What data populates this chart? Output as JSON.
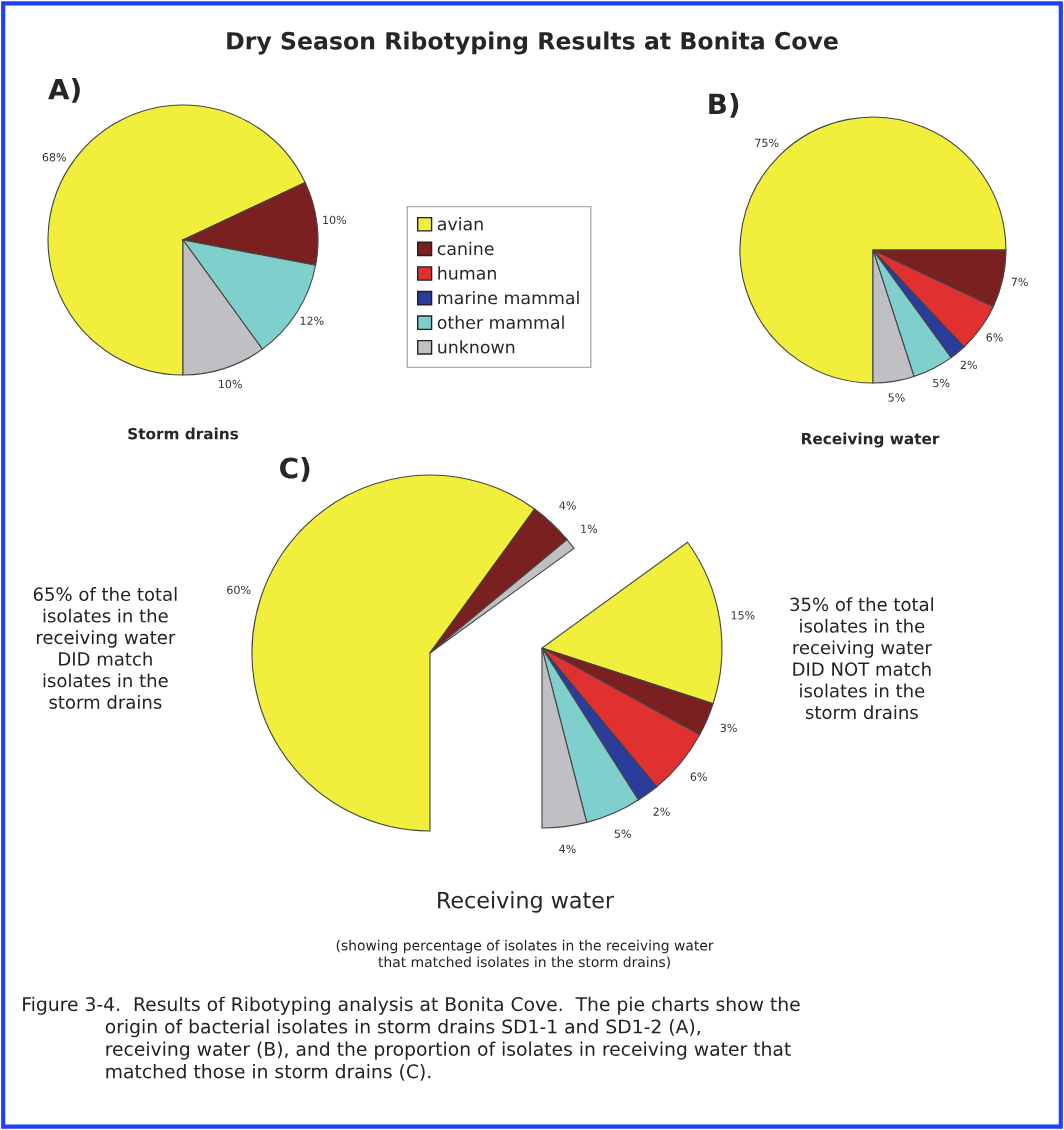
{
  "chart_data": [
    {
      "type": "pie",
      "title": "Dry Season Ribotyping Results at Bonita Cove",
      "subtitle": "A)",
      "xlabel": "Storm drains",
      "categories": [
        null,
        null,
        null,
        null
      ],
      "values": [
        68,
        10,
        12,
        10
      ],
      "value_labels": [
        "68%",
        "10%",
        "12%",
        "10%"
      ],
      "colors": [
        "#f2ee3c",
        "#7b2020",
        "#7fcfcc",
        "#c0c0c4"
      ]
    },
    {
      "type": "pie",
      "subtitle": "B)",
      "xlabel": "Receiving water",
      "legend": "left",
      "categories": [
        "avian",
        "canine",
        "human",
        "marine mammal",
        "other mammal",
        "unknown"
      ],
      "values": [
        75,
        7,
        6,
        2,
        5,
        5
      ],
      "value_labels": [
        "75%",
        "7%",
        "6%",
        "2%",
        "5%",
        "5%"
      ],
      "colors": [
        "#f2ee3c",
        "#7b2020",
        "#e03030",
        "#2b3c9a",
        "#7fcfcc",
        "#c0c0c4"
      ]
    },
    {
      "type": "pie",
      "subtitle": "C)",
      "xlabel": "Receiving water",
      "categories": [
        null,
        null,
        null
      ],
      "values": [
        60,
        4,
        1
      ],
      "value_labels": [
        "60%",
        "4%",
        "1%"
      ],
      "colors": [
        "#f2ee3c",
        "#7b2020",
        "#c0c0c4"
      ],
      "annotations": [
        "65% of the total\nisolates in the\nreceiving water\nDID match\nisolates in the\nstorm drains",
        "(showing percentage of isolates in the receiving water\nthat matched isolates in the storm drains)",
        "Figure 3-4.  Results of Ribotyping analysis at Bonita Cove.  The pie charts show the\n              origin of bacterial isolates in storm drains SD1-1 and SD1-2 (A),\n              receiving water (B), and the proportion of isolates in receiving water that\n              matched those in storm drains (C)."
      ]
    },
    {
      "type": "pie",
      "categories": [
        null,
        null,
        null,
        null,
        null,
        null
      ],
      "values": [
        15,
        3,
        6,
        2,
        5,
        4
      ],
      "value_labels": [
        "15%",
        "3%",
        "6%",
        "2%",
        "5%",
        "4%"
      ],
      "colors": [
        "#f2ee3c",
        "#7b2020",
        "#e03030",
        "#2b3c9a",
        "#7fcfcc",
        "#c0c0c4"
      ],
      "annotations": [
        "35% of the total\nisolates in the\nreceiving water\nDID NOT match\nisolates in the\nstorm drains"
      ]
    }
  ]
}
